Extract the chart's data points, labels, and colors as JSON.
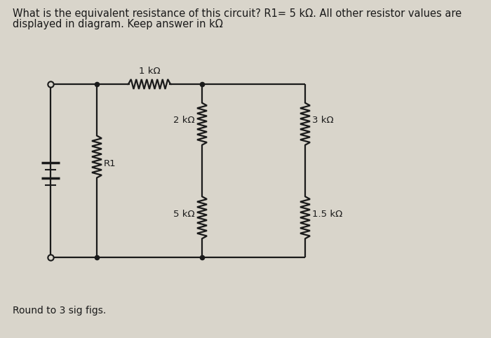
{
  "title_line1": "What is the equivalent resistance of this circuit? R1= 5 kΩ. All other resistor values are",
  "title_line2": "displayed in diagram. Keep answer in kΩ",
  "footer": "Round to 3 sig figs.",
  "background_color": "#d9d5cb",
  "line_color": "#1a1a1a",
  "text_color": "#1a1a1a",
  "labels": {
    "R1": "R1",
    "1k": "1 kΩ",
    "2k": "2 kΩ",
    "5k": "5 kΩ",
    "3k": "3 kΩ",
    "1p5k": "1.5 kΩ"
  },
  "title_fontsize": 10.5,
  "label_fontsize": 9.5,
  "footer_fontsize": 10
}
